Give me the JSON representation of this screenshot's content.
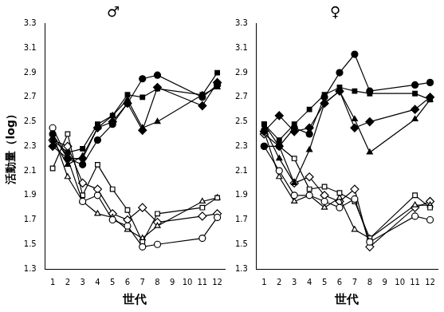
{
  "chart_data": [
    {
      "type": "line",
      "title": "♂",
      "y_label": "活動量（log）",
      "x_label": "世代",
      "x": [
        1,
        2,
        3,
        4,
        5,
        6,
        7,
        8,
        11,
        12
      ],
      "xlim": [
        0.5,
        12.5
      ],
      "xticks": [
        1,
        2,
        3,
        4,
        5,
        6,
        7,
        8,
        9,
        10,
        11,
        12
      ],
      "ylim": [
        1.3,
        3.3
      ],
      "yticks": [
        1.3,
        1.5,
        1.7,
        1.9,
        2.1,
        2.3,
        2.5,
        2.7,
        2.9,
        3.1,
        3.3
      ],
      "grid": false,
      "series": [
        {
          "color": "#000000",
          "marker": "circle",
          "values": [
            2.4,
            2.2,
            2.15,
            2.35,
            2.48,
            2.65,
            2.85,
            2.88,
            2.7,
            2.8
          ]
        },
        {
          "color": "#000000",
          "marker": "square",
          "values": [
            2.35,
            2.25,
            2.28,
            2.48,
            2.55,
            2.72,
            2.7,
            2.77,
            2.72,
            2.9
          ]
        },
        {
          "color": "#000000",
          "marker": "triangle",
          "values": [
            2.35,
            2.15,
            2.22,
            2.45,
            2.55,
            2.68,
            2.45,
            2.5,
            2.72,
            2.78
          ]
        },
        {
          "color": "#000000",
          "marker": "diamond",
          "values": [
            2.3,
            2.2,
            2.2,
            2.45,
            2.5,
            2.65,
            2.43,
            2.78,
            2.63,
            2.82
          ]
        },
        {
          "color": "#000000",
          "marker": "circle-open",
          "values": [
            2.45,
            2.2,
            1.85,
            1.9,
            1.7,
            1.65,
            1.48,
            1.5,
            1.55,
            1.72
          ]
        },
        {
          "color": "#000000",
          "marker": "square-open",
          "values": [
            2.12,
            2.4,
            1.9,
            2.15,
            1.95,
            1.78,
            1.52,
            1.75,
            1.8,
            1.88
          ]
        },
        {
          "color": "#000000",
          "marker": "triangle-open",
          "values": [
            2.4,
            2.05,
            1.85,
            1.75,
            1.72,
            1.62,
            1.55,
            1.65,
            1.85,
            1.88
          ]
        },
        {
          "color": "#000000",
          "marker": "diamond-open",
          "values": [
            2.35,
            2.3,
            2.0,
            1.95,
            1.75,
            1.7,
            1.8,
            1.68,
            1.73,
            1.75
          ]
        }
      ]
    },
    {
      "type": "line",
      "title": "♀",
      "x_label": "世代",
      "x": [
        1,
        2,
        3,
        4,
        5,
        6,
        7,
        8,
        11,
        12
      ],
      "xlim": [
        0.5,
        12.5
      ],
      "xticks": [
        1,
        2,
        3,
        4,
        5,
        6,
        7,
        8,
        9,
        10,
        11,
        12
      ],
      "ylim": [
        1.3,
        3.3
      ],
      "yticks": [
        1.3,
        1.5,
        1.7,
        1.9,
        2.1,
        2.3,
        2.5,
        2.7,
        2.9,
        3.1,
        3.3
      ],
      "grid": false,
      "series": [
        {
          "color": "#000000",
          "marker": "circle",
          "values": [
            2.3,
            2.3,
            2.45,
            2.4,
            2.7,
            2.9,
            3.05,
            2.75,
            2.8,
            2.82
          ]
        },
        {
          "color": "#000000",
          "marker": "square",
          "values": [
            2.48,
            2.35,
            2.48,
            2.6,
            2.72,
            2.78,
            2.75,
            2.73,
            2.73,
            2.68
          ]
        },
        {
          "color": "#000000",
          "marker": "triangle",
          "values": [
            2.45,
            2.2,
            2.0,
            2.27,
            2.65,
            2.75,
            2.52,
            2.25,
            2.52,
            2.68
          ]
        },
        {
          "color": "#000000",
          "marker": "diamond",
          "values": [
            2.42,
            2.55,
            2.42,
            2.45,
            2.65,
            2.75,
            2.45,
            2.5,
            2.6,
            2.7
          ]
        },
        {
          "color": "#000000",
          "marker": "circle-open",
          "values": [
            2.3,
            2.1,
            1.9,
            1.9,
            1.85,
            1.8,
            1.87,
            1.52,
            1.73,
            1.7
          ]
        },
        {
          "color": "#000000",
          "marker": "square-open",
          "values": [
            2.48,
            2.3,
            2.2,
            1.95,
            1.97,
            1.92,
            1.85,
            1.55,
            1.9,
            1.8
          ]
        },
        {
          "color": "#000000",
          "marker": "triangle-open",
          "values": [
            2.42,
            2.05,
            1.85,
            1.9,
            1.8,
            1.88,
            1.62,
            1.55,
            1.82,
            1.82
          ]
        },
        {
          "color": "#000000",
          "marker": "diamond-open",
          "values": [
            2.4,
            2.3,
            2.0,
            2.05,
            1.9,
            1.85,
            1.95,
            1.48,
            1.8,
            1.85
          ]
        }
      ]
    }
  ]
}
